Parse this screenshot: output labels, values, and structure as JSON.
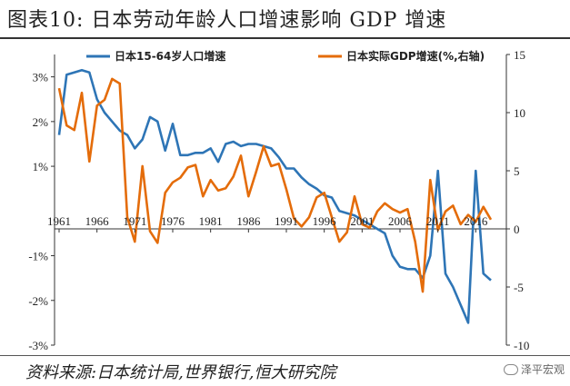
{
  "title": "图表10:     日本劳动年龄人口增速影响 GDP 增速",
  "source": "资料来源:日本统计局,世界银行,恒大研究院",
  "watermark": "泽平宏观",
  "chart_data": {
    "type": "line",
    "x": [
      1961,
      1962,
      1963,
      1964,
      1965,
      1966,
      1967,
      1968,
      1969,
      1970,
      1971,
      1972,
      1973,
      1974,
      1975,
      1976,
      1977,
      1978,
      1979,
      1980,
      1981,
      1982,
      1983,
      1984,
      1985,
      1986,
      1987,
      1988,
      1989,
      1990,
      1991,
      1992,
      1993,
      1994,
      1995,
      1996,
      1997,
      1998,
      1999,
      2000,
      2001,
      2002,
      2003,
      2004,
      2005,
      2006,
      2007,
      2008,
      2009,
      2010,
      2011,
      2012,
      2013,
      2014,
      2015,
      2016,
      2017,
      2018
    ],
    "x_ticks": [
      "1961",
      "1966",
      "1971",
      "1976",
      "1981",
      "1986",
      "1991",
      "1996",
      "2001",
      "2006",
      "2011",
      "2016"
    ],
    "series": [
      {
        "name": "日本15-64岁人口增速",
        "axis": "left",
        "color": "#2E75B6",
        "values": [
          1.7,
          3.05,
          3.1,
          3.15,
          3.1,
          2.5,
          2.2,
          2.0,
          1.8,
          1.7,
          1.4,
          1.6,
          2.1,
          2.0,
          1.35,
          1.95,
          1.25,
          1.25,
          1.3,
          1.3,
          1.4,
          1.1,
          1.5,
          1.55,
          1.45,
          1.5,
          1.5,
          1.45,
          1.4,
          1.2,
          0.95,
          0.95,
          0.75,
          0.6,
          0.5,
          0.35,
          0.3,
          0.0,
          -0.05,
          -0.1,
          -0.2,
          -0.3,
          -0.4,
          -0.5,
          -1.0,
          -1.25,
          -1.3,
          -1.3,
          -1.5,
          -1.0,
          0.9,
          -1.4,
          -1.7,
          -2.1,
          -2.5,
          0.9,
          -1.4,
          -1.55
        ]
      },
      {
        "name": "日本实际GDP增速(%,右轴)",
        "axis": "right",
        "color": "#E46C0A",
        "values": [
          12.1,
          8.9,
          8.5,
          11.7,
          5.8,
          10.6,
          11.1,
          12.9,
          12.5,
          1.0,
          -1.1,
          5.4,
          -0.2,
          -1.2,
          3.1,
          4.0,
          4.4,
          5.3,
          5.5,
          2.8,
          4.2,
          3.3,
          3.5,
          4.5,
          6.3,
          2.8,
          4.9,
          7.1,
          5.4,
          5.6,
          3.4,
          0.9,
          0.2,
          1.0,
          2.7,
          3.1,
          1.0,
          -1.1,
          -0.3,
          2.8,
          0.4,
          0.1,
          1.5,
          2.2,
          1.7,
          1.4,
          1.7,
          -1.1,
          -5.4,
          4.2,
          -0.1,
          1.5,
          2.0,
          0.4,
          1.2,
          0.6,
          1.9,
          0.8
        ]
      }
    ],
    "y_left": {
      "min": -3,
      "max": 3.5,
      "ticks": [
        -3,
        -2,
        -1,
        1,
        2,
        3
      ],
      "labels": [
        "-3%",
        "-2%",
        "-1%",
        "1%",
        "2%",
        "3%"
      ]
    },
    "y_right": {
      "min": -10,
      "max": 15,
      "ticks": [
        -10,
        -5,
        0,
        5,
        10,
        15
      ],
      "labels": [
        "-10",
        "-5",
        "0",
        "5",
        "10",
        "15"
      ]
    },
    "grid": false,
    "legend_position": "top"
  }
}
